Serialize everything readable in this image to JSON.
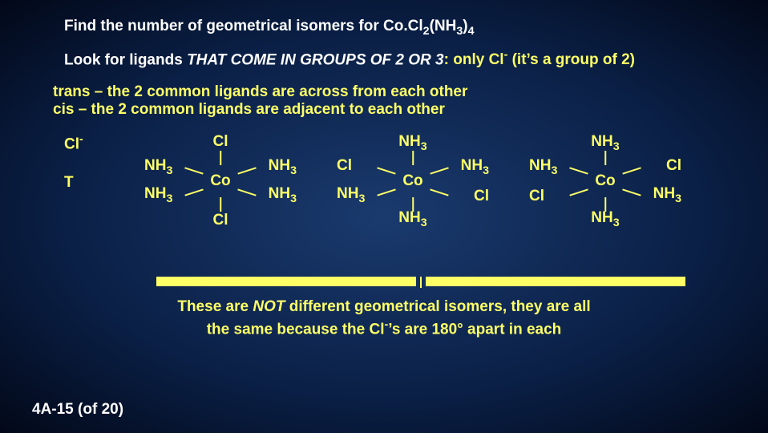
{
  "title_a": "Find the number of geometrical isomers for ",
  "formula": "Co.Cl",
  "formula_sub1": "2",
  "formula_mid": "(NH",
  "formula_sub2": "3",
  "formula_end": ")",
  "formula_sub3": "4",
  "line2_a": "Look for ligands ",
  "line2_b": "THAT COME IN GROUPS OF 2 OR 3",
  "line2_c": ":  only Cl",
  "line2_sup": "-",
  "line2_d": " (it’s a group of 2)",
  "line3": "trans – the 2 common ligands are across from each other",
  "line4": "cis – the 2 common ligands are adjacent to each other",
  "left_label1_a": "Cl",
  "left_label1_sup": "-",
  "left_label2": "T",
  "Co": "Co",
  "Cl": "Cl",
  "NH3_a": "NH",
  "NH3_b": "3",
  "caption_a": "These are ",
  "caption_b": "NOT",
  "caption_c": " different geometrical isomers, they are all",
  "caption_d": "the same because the Cl",
  "caption_e": "-",
  "caption_f": "’s are 180° apart in each",
  "footer": "4A-15 (of 20)"
}
